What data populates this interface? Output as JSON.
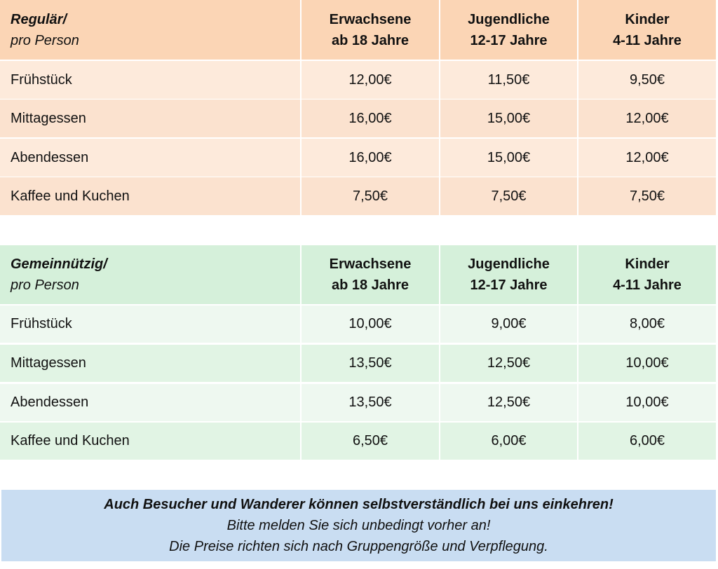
{
  "tables": [
    {
      "title": "Regulär/",
      "subtitle": "pro Person",
      "columns": [
        [
          "Erwachsene",
          "ab 18 Jahre"
        ],
        [
          "Jugendliche",
          "12-17 Jahre"
        ],
        [
          "Kinder",
          "4-11 Jahre"
        ]
      ],
      "rows": [
        [
          "Frühstück",
          "12,00€",
          "11,50€",
          "9,50€"
        ],
        [
          "Mittagessen",
          "16,00€",
          "15,00€",
          "12,00€"
        ],
        [
          "Abendessen",
          "16,00€",
          "15,00€",
          "12,00€"
        ],
        [
          "Kaffee und Kuchen",
          "7,50€",
          "7,50€",
          "7,50€"
        ]
      ]
    },
    {
      "title": "Gemeinnützig/",
      "subtitle": "pro Person",
      "columns": [
        [
          "Erwachsene",
          "ab 18 Jahre"
        ],
        [
          "Jugendliche",
          "12-17 Jahre"
        ],
        [
          "Kinder",
          "4-11 Jahre"
        ]
      ],
      "rows": [
        [
          "Frühstück",
          "10,00€",
          "9,00€",
          "8,00€"
        ],
        [
          "Mittagessen",
          "13,50€",
          "12,50€",
          "10,00€"
        ],
        [
          "Abendessen",
          "13,50€",
          "12,50€",
          "10,00€"
        ],
        [
          "Kaffee und Kuchen",
          "6,50€",
          "6,00€",
          "6,00€"
        ]
      ]
    }
  ],
  "note": {
    "headline": "Auch Besucher und Wanderer können selbstverständlich bei uns einkehren!",
    "lines": [
      "Bitte melden Sie sich unbedingt vorher an!",
      "Die Preise richten sich nach Gruppengröße und Verpflegung."
    ]
  }
}
